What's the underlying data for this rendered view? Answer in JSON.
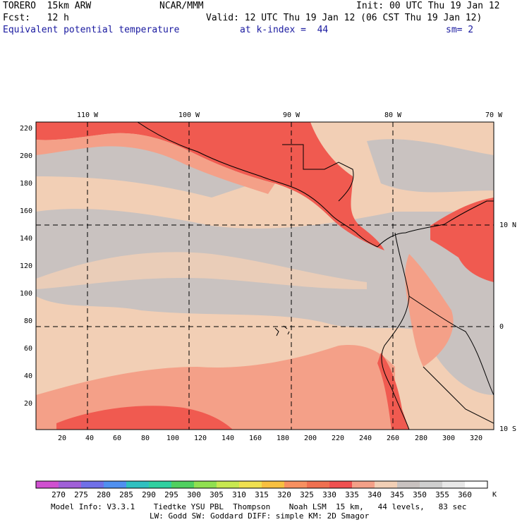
{
  "header": {
    "model": "TORERO  15km ARW",
    "org": "NCAR/MMM",
    "init": "Init: 00 UTC Thu 19 Jan 12",
    "fcst": "Fcst:   12 h",
    "valid": "Valid: 12 UTC Thu 19 Jan 12 (06 CST Thu 19 Jan 12)",
    "field": "Equivalent potential temperature",
    "level": "at k-index =  44",
    "smooth": "sm= 2"
  },
  "map": {
    "top_lon_labels": [
      "110 W",
      "100 W",
      "90 W",
      "80 W",
      "70 W"
    ],
    "right_lat_labels": [
      "10 N",
      "0",
      "10 S"
    ],
    "left_ticks": [
      "220",
      "200",
      "180",
      "160",
      "140",
      "120",
      "100",
      "80",
      "60",
      "40",
      "20"
    ],
    "bottom_ticks": [
      "20",
      "40",
      "60",
      "80",
      "100",
      "120",
      "140",
      "160",
      "180",
      "200",
      "220",
      "240",
      "260",
      "280",
      "300",
      "320"
    ],
    "ocean_color": "#f2cfb5",
    "gray_band_color": "#c9c2c0",
    "warm_color": "#f4a088",
    "hot_color": "#f05a50"
  },
  "colorbar": {
    "unit": "K",
    "labels": [
      "270",
      "275",
      "280",
      "285",
      "290",
      "295",
      "300",
      "305",
      "310",
      "315",
      "320",
      "325",
      "330",
      "335",
      "340",
      "345",
      "350",
      "355",
      "360"
    ],
    "colors": [
      "#d050d0",
      "#a060d8",
      "#7070e8",
      "#5090f0",
      "#30c0c0",
      "#30d0a0",
      "#50d060",
      "#90e050",
      "#c8e850",
      "#f0e050",
      "#f8c040",
      "#f89060",
      "#f07050",
      "#f05050",
      "#f4a088",
      "#f2cfb5",
      "#c9c2c0",
      "#cfcfcf",
      "#e8e8e8",
      "#ffffff"
    ]
  },
  "footer": {
    "line1": "Model Info: V3.3.1    Tiedtke YSU PBL  Thompson    Noah LSM  15 km,   44 levels,   83 sec",
    "line2": "LW: Godd SW: Goddard DIFF: simple KM: 2D Smagor"
  }
}
